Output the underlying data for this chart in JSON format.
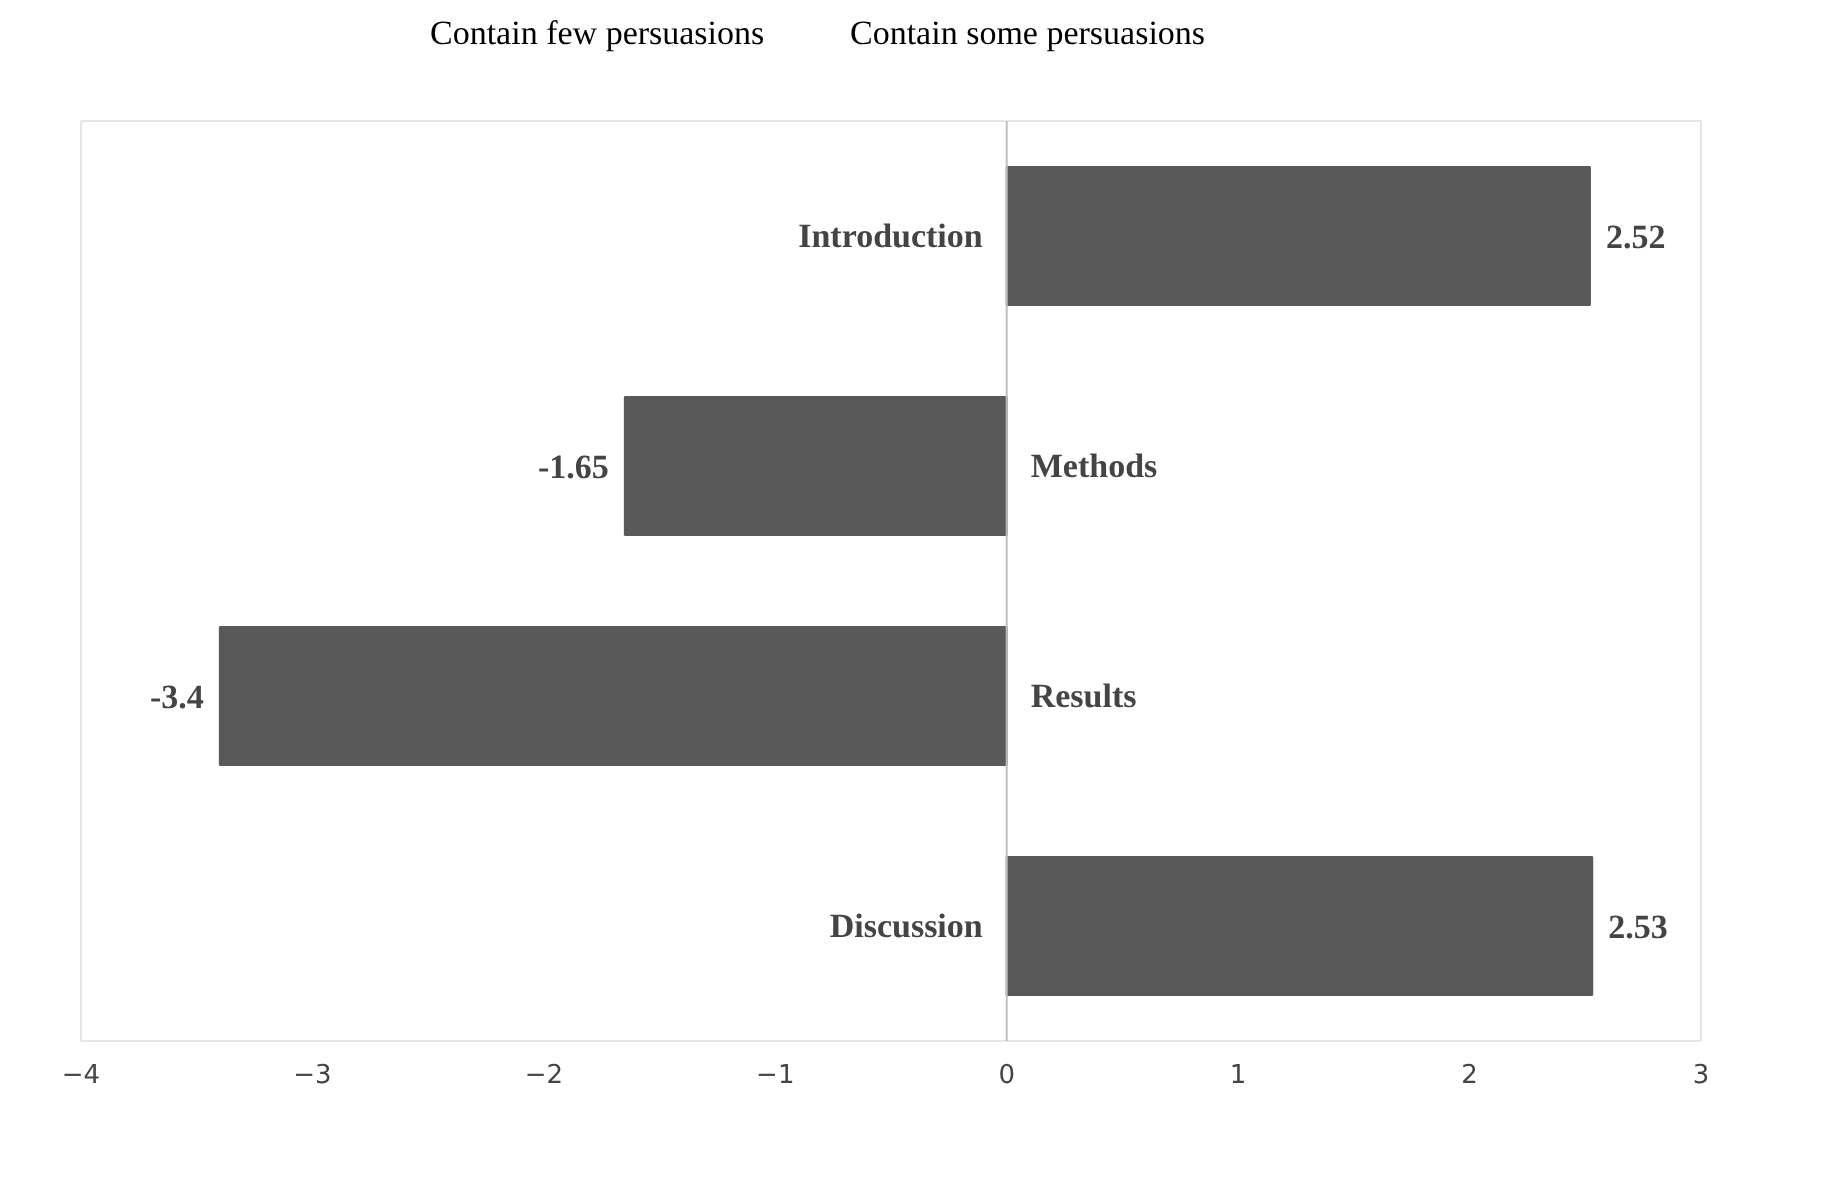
{
  "chart_data": {
    "type": "bar",
    "orientation": "horizontal",
    "categories": [
      "Introduction",
      "Methods",
      "Results",
      "Discussion"
    ],
    "values": [
      2.52,
      -1.65,
      -3.4,
      2.53
    ],
    "color": "#595959",
    "xlim": [
      -4,
      3
    ],
    "xticks": [
      -4,
      -3,
      -2,
      -1,
      0,
      1,
      2,
      3
    ],
    "data_labels": true,
    "grid": false,
    "annotations": [
      "Contain few persuasions",
      "Contain some persuasions"
    ]
  }
}
